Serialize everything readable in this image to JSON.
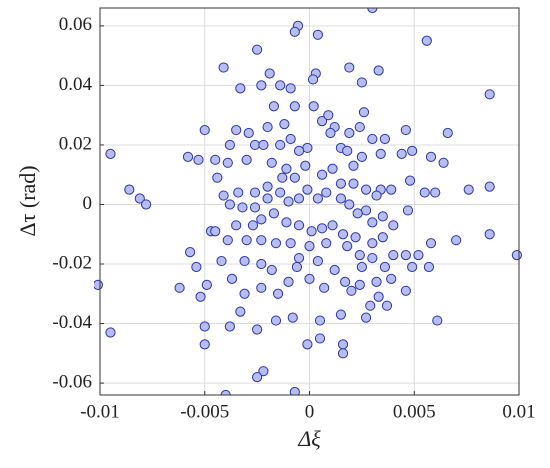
{
  "chart_data": {
    "type": "scatter",
    "xlabel": "Δξ",
    "ylabel": "Δτ (rad)",
    "xlim": [
      -0.01,
      0.01
    ],
    "ylim": [
      -0.064,
      0.066
    ],
    "xticks": [
      -0.01,
      -0.005,
      0,
      0.005,
      0.01
    ],
    "yticks": [
      -0.06,
      -0.04,
      -0.02,
      0,
      0.02,
      0.04,
      0.06
    ],
    "grid": true,
    "color": "#b8bdf0",
    "edgecolor": "#2a36a6",
    "x": [
      0.003,
      -0.00055,
      -0.0007,
      0.0004,
      -0.0025,
      -0.0041,
      0.0019,
      0.0056,
      -0.0019,
      0.0003,
      -0.0033,
      -0.0023,
      -0.0014,
      0.0025,
      0.0033,
      0.00017,
      0.0099,
      -0.0095,
      -0.0101,
      0.0086,
      0.0086,
      0.0086,
      0.0076,
      0.007,
      -0.0086,
      -0.0081,
      -0.0078,
      -0.0095,
      -0.0062,
      -0.0054,
      -0.0052,
      -0.0049,
      -0.005,
      -0.005,
      -0.0047,
      -0.0045,
      -0.0058,
      -0.0053,
      -0.005,
      -0.0045,
      -0.0044,
      -0.0041,
      -0.0038,
      -0.004,
      -0.0007,
      -0.0022,
      -0.0025,
      -0.0038,
      -0.0033,
      -0.0025,
      -0.0016,
      -0.0008,
      -0.0001,
      0.0005,
      0.0016,
      0.0016,
      0.0015,
      0.0005,
      0.0029,
      0.0027,
      0.0037,
      0.0061,
      0.0017,
      0.002,
      0.0033,
      0.0046,
      0.0049,
      0.0057,
      0.0052,
      0.0046,
      0.004,
      0.0058,
      0.0064,
      0.0058,
      0.0049,
      0.0046,
      0.0044,
      0.0048,
      0.0047,
      0.0055,
      0.006,
      0.0039,
      0.0034,
      0.0027,
      0.0032,
      0.0027,
      0.0021,
      0.0024,
      0.0019,
      0.0012,
      0.0006,
      0.0002,
      0.0009,
      -0.0007,
      -0.0009,
      -0.0017,
      -0.0012,
      -0.002,
      -0.0029,
      -0.0035,
      -0.0038,
      -0.0026,
      -0.0022,
      -0.0014,
      -0.0009,
      -0.0001,
      0.0015,
      0.0018,
      0.003,
      0.0036,
      0.0034,
      -0.0039,
      -0.003,
      -0.0018,
      -0.0011,
      -0.0002,
      0.0006,
      0.0015,
      0.0021,
      0.0011,
      -0.0001,
      -0.0007,
      -0.0013,
      -0.002,
      -0.0026,
      -0.0034,
      -0.0032,
      -0.0026,
      -0.002,
      -0.0014,
      -0.001,
      -0.0005,
      0.0004,
      0.0008,
      0.0015,
      0.0019,
      0.0023,
      0.003,
      0.0035,
      0.004,
      0.0035,
      0.003,
      0.0022,
      0.0016,
      0.0011,
      0.0006,
      0.0001,
      -0.0005,
      -0.0011,
      -0.0017,
      -0.0023,
      -0.0027,
      -0.0035,
      -0.0039,
      -0.003,
      -0.0023,
      -0.0016,
      -0.0009,
      -0.0005,
      0.0,
      0.0004,
      0.0008,
      0.0012,
      0.0018,
      0.0024,
      0.0025,
      0.003,
      0.0036,
      0.0039,
      0.0032,
      0.0024,
      0.0007,
      0.0,
      -0.001,
      -0.0018,
      -0.0023,
      -0.0031,
      -0.0037,
      -0.0031,
      -0.0023,
      -0.0015,
      -0.0006,
      -0.0042,
      -0.0057,
      -0.0005,
      0.0025,
      0.0026,
      0.001,
      0.0066
    ],
    "values": [
      0.066,
      0.06,
      0.058,
      0.057,
      0.052,
      0.046,
      0.046,
      0.055,
      0.044,
      0.044,
      0.039,
      0.04,
      0.04,
      0.041,
      0.045,
      0.042,
      -0.017,
      0.017,
      -0.027,
      0.037,
      0.006,
      -0.01,
      0.005,
      -0.012,
      0.005,
      0.002,
      0.0,
      -0.043,
      -0.028,
      -0.021,
      -0.031,
      -0.027,
      -0.041,
      -0.047,
      -0.009,
      -0.009,
      0.016,
      0.015,
      0.025,
      0.015,
      0.009,
      0.003,
      0.0,
      -0.064,
      -0.063,
      -0.056,
      -0.058,
      -0.041,
      -0.036,
      -0.042,
      -0.039,
      -0.038,
      -0.047,
      -0.045,
      -0.047,
      -0.05,
      -0.037,
      -0.039,
      -0.034,
      -0.038,
      -0.034,
      -0.039,
      -0.026,
      -0.029,
      -0.031,
      -0.029,
      -0.021,
      -0.021,
      -0.017,
      -0.017,
      -0.017,
      -0.013,
      0.014,
      0.016,
      0.018,
      0.025,
      0.017,
      0.008,
      -0.002,
      0.004,
      0.004,
      0.005,
      0.005,
      0.005,
      0.003,
      -0.002,
      0.013,
      0.026,
      0.024,
      0.026,
      0.028,
      0.033,
      0.03,
      0.033,
      0.039,
      0.033,
      0.027,
      0.026,
      0.024,
      0.025,
      0.02,
      0.02,
      0.02,
      0.02,
      0.022,
      0.019,
      0.019,
      0.018,
      0.022,
      0.022,
      0.017,
      0.014,
      0.015,
      0.014,
      0.012,
      0.013,
      0.01,
      0.007,
      0.007,
      0.012,
      0.005,
      0.009,
      0.009,
      0.006,
      0.004,
      0.004,
      -0.001,
      -0.001,
      0.002,
      0.004,
      0.001,
      0.002,
      0.002,
      0.004,
      0.002,
      0.0,
      -0.003,
      -0.006,
      -0.004,
      -0.007,
      -0.011,
      -0.013,
      -0.011,
      -0.01,
      -0.007,
      -0.008,
      -0.009,
      -0.007,
      -0.006,
      -0.003,
      -0.005,
      -0.007,
      -0.007,
      -0.012,
      -0.012,
      -0.012,
      -0.013,
      -0.013,
      -0.018,
      -0.014,
      -0.019,
      -0.013,
      -0.022,
      -0.014,
      -0.017,
      -0.021,
      -0.018,
      -0.021,
      -0.025,
      -0.026,
      -0.027,
      -0.028,
      -0.025,
      -0.026,
      -0.022,
      -0.02,
      -0.019,
      -0.025,
      -0.03,
      -0.028,
      -0.03,
      -0.021,
      -0.019,
      -0.016,
      0.018,
      0.016,
      0.031,
      0.024,
      0.024
    ]
  }
}
